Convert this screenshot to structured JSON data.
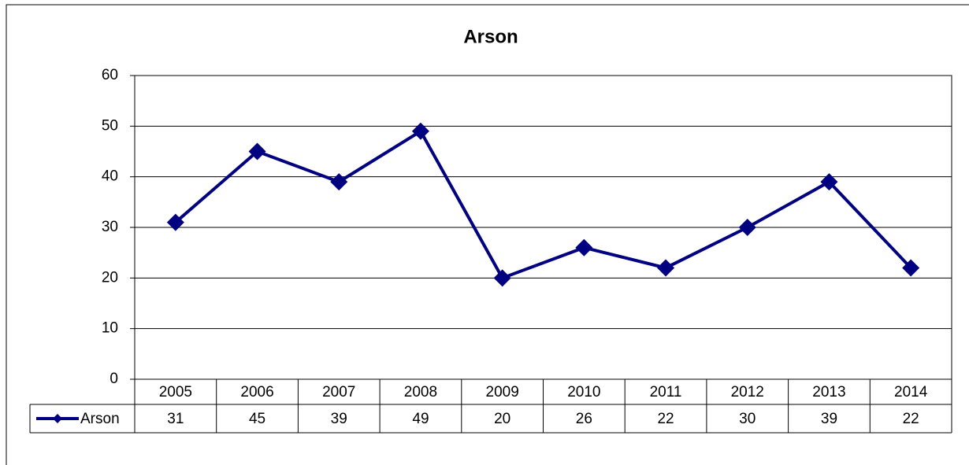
{
  "chart_data": {
    "type": "line",
    "title": "Arson",
    "categories": [
      "2005",
      "2006",
      "2007",
      "2008",
      "2009",
      "2010",
      "2011",
      "2012",
      "2013",
      "2014"
    ],
    "series": [
      {
        "name": "Arson",
        "color": "#000080",
        "values": [
          31,
          45,
          39,
          49,
          20,
          26,
          22,
          30,
          39,
          22
        ]
      }
    ],
    "ylim": [
      0,
      60
    ],
    "yticks": [
      0,
      10,
      20,
      30,
      40,
      50,
      60
    ],
    "grid": true,
    "data_table": true
  }
}
